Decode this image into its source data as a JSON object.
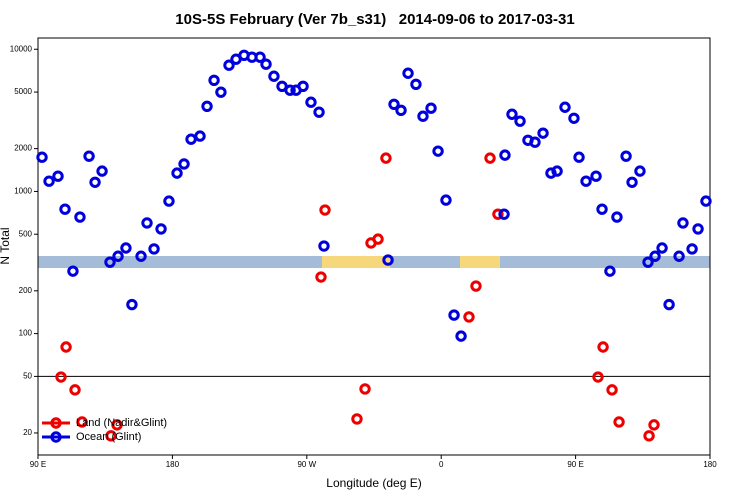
{
  "chart_data": {
    "type": "scatter",
    "title": "10S-5S February (Ver 7b_s31)   2014-09-06 to 2017-03-31",
    "x_label": "Longitude (deg E)",
    "y_label": "N Total",
    "log_y": true,
    "hline": 50,
    "legend": "bottom-left",
    "xlim": [
      90,
      540
    ],
    "ylim": [
      14,
      12000
    ],
    "xticks": [
      {
        "value": 90,
        "label": "90 E"
      },
      180,
      {
        "value": 270,
        "label": "90 W"
      },
      {
        "value": 360,
        "label": "0"
      },
      {
        "value": 450,
        "label": "90 E"
      },
      {
        "value": 540,
        "label": "180"
      }
    ],
    "yticks": [
      20,
      50,
      100,
      200,
      500,
      1000,
      2000,
      5000,
      10000
    ],
    "series": [
      {
        "name": "Land (Nadir&Glint)",
        "color": "#ee0000",
        "x": [
          105.4,
          108.8,
          114.8,
          119.5,
          138.9,
          142.9,
          279.5,
          282.2,
          303.6,
          309,
          313,
          317.7,
          323,
          378.6,
          383.3,
          392.7,
          398,
          465,
          468.4,
          474.4,
          479.1,
          499.2,
          502.5
        ],
        "values": [
          49.5,
          80.5,
          40.2,
          23.9,
          19.1,
          22.8,
          250,
          740,
          25.1,
          40.8,
          434,
          462,
          1715,
          131,
          216,
          1715,
          692,
          49.5,
          80.5,
          40.2,
          23.9,
          19.1,
          22.8
        ]
      },
      {
        "name": "Ocean (Glint)",
        "color": "#0000dd",
        "x": [
          92.7,
          97.4,
          103.4,
          108.1,
          113.4,
          118.1,
          124.2,
          128.2,
          132.9,
          138.2,
          143.6,
          148.9,
          152.9,
          159,
          163,
          167.7,
          172.4,
          177.7,
          183.1,
          187.8,
          192.5,
          198.5,
          203.2,
          207.9,
          212.5,
          217.9,
          222.6,
          228,
          233.3,
          238.7,
          242.7,
          248,
          253.4,
          258.8,
          262.8,
          267.5,
          272.8,
          278.2,
          281.5,
          324.4,
          328.4,
          333.1,
          337.8,
          343.1,
          347.8,
          353.2,
          357.9,
          363.2,
          368.6,
          373.3,
          402.1,
          402.7,
          407.4,
          412.8,
          418.1,
          422.8,
          428.2,
          433.5,
          437.6,
          442.9,
          448.9,
          452.3,
          457,
          463.7,
          467.7,
          473,
          477.7,
          483.8,
          487.8,
          493.1,
          498.5,
          503.2,
          507.9,
          512.6,
          519.3,
          521.9,
          528,
          532,
          537.3
        ],
        "values": [
          1740,
          1180,
          1280,
          750,
          275,
          660,
          1770,
          1160,
          1390,
          318,
          350,
          400,
          160,
          350,
          600,
          394,
          545,
          855,
          1345,
          1560,
          2330,
          2450,
          3970,
          6050,
          4990,
          7720,
          8510,
          9070,
          8790,
          8790,
          7850,
          6460,
          5490,
          5150,
          5150,
          5490,
          4240,
          3610,
          413,
          329,
          4100,
          3720,
          6780,
          5670,
          3380,
          3850,
          1920,
          869,
          135,
          96,
          692,
          1800,
          3490,
          3120,
          2290,
          2220,
          2570,
          1345,
          1390,
          3910,
          3270,
          1740,
          1180,
          1280,
          750,
          275,
          660,
          1770,
          1160,
          1390,
          318,
          350,
          400,
          160,
          350,
          600,
          394,
          545,
          855
        ]
      }
    ]
  }
}
